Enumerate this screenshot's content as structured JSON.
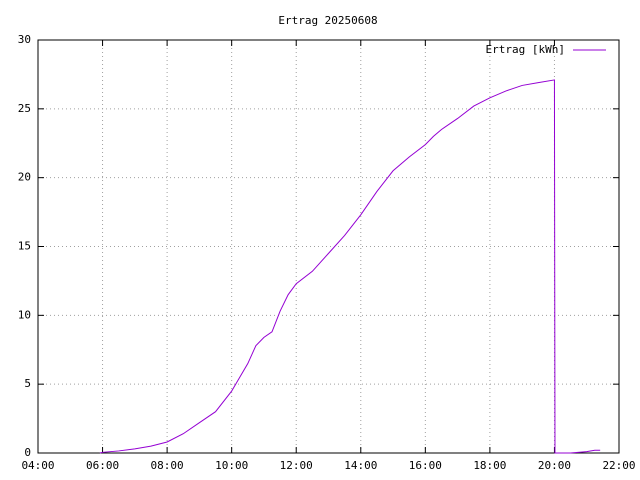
{
  "chart_data": {
    "type": "line",
    "title": "Ertrag 20250608",
    "x": [
      "05:55",
      "06:00",
      "06:30",
      "07:00",
      "07:30",
      "08:00",
      "08:30",
      "09:00",
      "09:30",
      "10:00",
      "10:30",
      "10:45",
      "11:00",
      "11:15",
      "11:30",
      "11:45",
      "12:00",
      "12:30",
      "13:00",
      "13:30",
      "14:00",
      "14:30",
      "15:00",
      "15:30",
      "16:00",
      "16:15",
      "16:30",
      "17:00",
      "17:30",
      "18:00",
      "18:30",
      "19:00",
      "19:30",
      "20:00",
      "20:01",
      "20:30",
      "21:00",
      "21:15",
      "21:25"
    ],
    "series": [
      {
        "name": "Ertrag [kWh]",
        "color": "#9400d3",
        "values": [
          0,
          0.05,
          0.15,
          0.3,
          0.5,
          0.8,
          1.4,
          2.2,
          3.0,
          4.5,
          6.5,
          7.8,
          8.4,
          8.8,
          10.3,
          11.5,
          12.3,
          13.2,
          14.5,
          15.8,
          17.3,
          19.0,
          20.5,
          21.5,
          22.4,
          23.0,
          23.5,
          24.3,
          25.2,
          25.8,
          26.3,
          26.7,
          26.9,
          27.1,
          0,
          0,
          0.1,
          0.2,
          0.2
        ]
      }
    ],
    "xlim": [
      "04:00",
      "22:00"
    ],
    "xticks": [
      "04:00",
      "06:00",
      "08:00",
      "10:00",
      "12:00",
      "14:00",
      "16:00",
      "18:00",
      "20:00",
      "22:00"
    ],
    "ylim": [
      0,
      30
    ],
    "yticks": [
      0,
      5,
      10,
      15,
      20,
      25,
      30
    ],
    "grid": true,
    "legend": "top-right"
  }
}
